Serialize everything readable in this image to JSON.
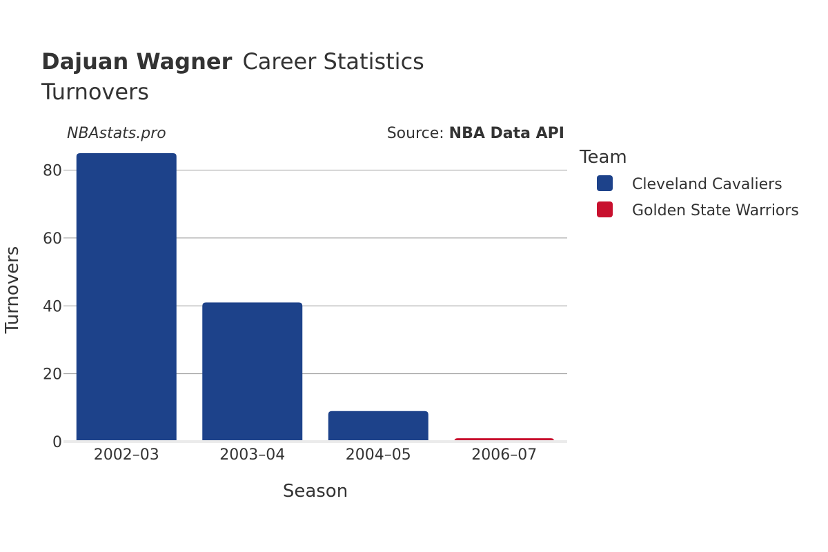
{
  "header": {
    "player_name": "Dajuan Wagner",
    "title_rest": "Career Statistics",
    "subtitle": "Turnovers",
    "brand": "NBAstats.pro",
    "source_label": "Source: ",
    "source_name": "NBA Data API"
  },
  "legend": {
    "title": "Team",
    "items": [
      {
        "label": "Cleveland Cavaliers",
        "color": "#1d428a"
      },
      {
        "label": "Golden State Warriors",
        "color": "#c8102e"
      }
    ]
  },
  "chart_data": {
    "type": "bar",
    "categories": [
      "2002–03",
      "2003–04",
      "2004–05",
      "2006–07"
    ],
    "series": [
      {
        "name": "Cleveland Cavaliers",
        "color": "#1d428a",
        "values": [
          85,
          41,
          9,
          null
        ]
      },
      {
        "name": "Golden State Warriors",
        "color": "#c8102e",
        "values": [
          null,
          null,
          null,
          1
        ]
      }
    ],
    "xlabel": "Season",
    "ylabel": "Turnovers",
    "ylim": [
      0,
      90
    ],
    "yticks": [
      0,
      20,
      40,
      60,
      80
    ],
    "grid": true,
    "legend_position": "right"
  }
}
